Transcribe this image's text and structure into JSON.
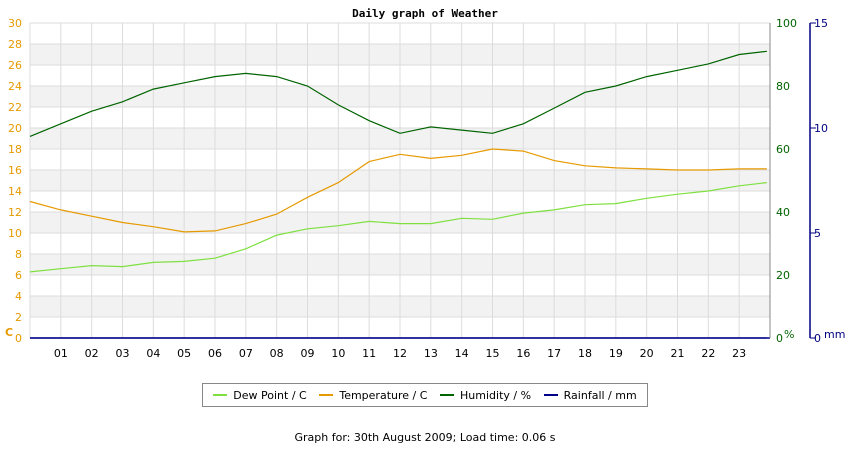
{
  "chart_data": {
    "type": "line",
    "title": "Daily graph of Weather",
    "x_ticks": [
      "01",
      "02",
      "03",
      "04",
      "05",
      "06",
      "07",
      "08",
      "09",
      "10",
      "11",
      "12",
      "13",
      "14",
      "15",
      "16",
      "17",
      "18",
      "19",
      "20",
      "21",
      "22",
      "23"
    ],
    "x_range": [
      0,
      24
    ],
    "axes": {
      "left": {
        "unit": "C",
        "range": [
          0,
          30
        ],
        "ticks": [
          0,
          2,
          4,
          6,
          8,
          10,
          12,
          14,
          16,
          18,
          20,
          22,
          24,
          26,
          28,
          30
        ],
        "color": "#e69a00"
      },
      "right1": {
        "unit": "%",
        "range": [
          0,
          100
        ],
        "ticks": [
          0,
          20,
          40,
          60,
          80,
          100
        ],
        "color": "#006400"
      },
      "right2": {
        "unit": "mm",
        "range": [
          0,
          15
        ],
        "ticks": [
          0,
          5,
          10,
          15
        ],
        "color": "#000080"
      }
    },
    "series": [
      {
        "name": "Dew Point / C",
        "axis": "left",
        "color": "#7ee040",
        "x": [
          0,
          1,
          2,
          3,
          4,
          5,
          6,
          7,
          8,
          9,
          10,
          11,
          12,
          13,
          14,
          15,
          16,
          17,
          18,
          19,
          20,
          21,
          22,
          23,
          23.9
        ],
        "y": [
          6.3,
          6.6,
          6.9,
          6.8,
          7.2,
          7.3,
          7.6,
          8.5,
          9.8,
          10.4,
          10.7,
          11.1,
          10.9,
          10.9,
          11.4,
          11.3,
          11.9,
          12.2,
          12.7,
          12.8,
          13.3,
          13.7,
          14.0,
          14.5,
          14.8
        ]
      },
      {
        "name": "Temperature / C",
        "axis": "left",
        "color": "#e69a00",
        "x": [
          0,
          1,
          2,
          3,
          4,
          5,
          6,
          7,
          8,
          9,
          10,
          11,
          12,
          13,
          14,
          15,
          16,
          17,
          18,
          19,
          20,
          21,
          22,
          23,
          23.9
        ],
        "y": [
          13.0,
          12.2,
          11.6,
          11.0,
          10.6,
          10.1,
          10.2,
          10.9,
          11.8,
          13.4,
          14.8,
          16.8,
          17.5,
          17.1,
          17.4,
          18.0,
          17.8,
          16.9,
          16.4,
          16.2,
          16.1,
          16.0,
          16.0,
          16.1,
          16.1
        ]
      },
      {
        "name": "Humidity / %",
        "axis": "right1",
        "color": "#006400",
        "x": [
          0,
          1,
          2,
          3,
          4,
          5,
          6,
          7,
          8,
          9,
          10,
          11,
          12,
          13,
          14,
          15,
          16,
          17,
          18,
          19,
          20,
          21,
          22,
          23,
          23.9
        ],
        "y": [
          64,
          68,
          72,
          75,
          79,
          81,
          83,
          84,
          83,
          80,
          74,
          69,
          65,
          67,
          66,
          65,
          68,
          73,
          78,
          80,
          83,
          85,
          87,
          90,
          91
        ]
      },
      {
        "name": "Rainfall / mm",
        "axis": "right2",
        "color": "#00008b",
        "x": [
          0,
          23.9
        ],
        "y": [
          0,
          0
        ]
      }
    ]
  },
  "footer": "Graph for: 30th August 2009; Load time: 0.06 s"
}
